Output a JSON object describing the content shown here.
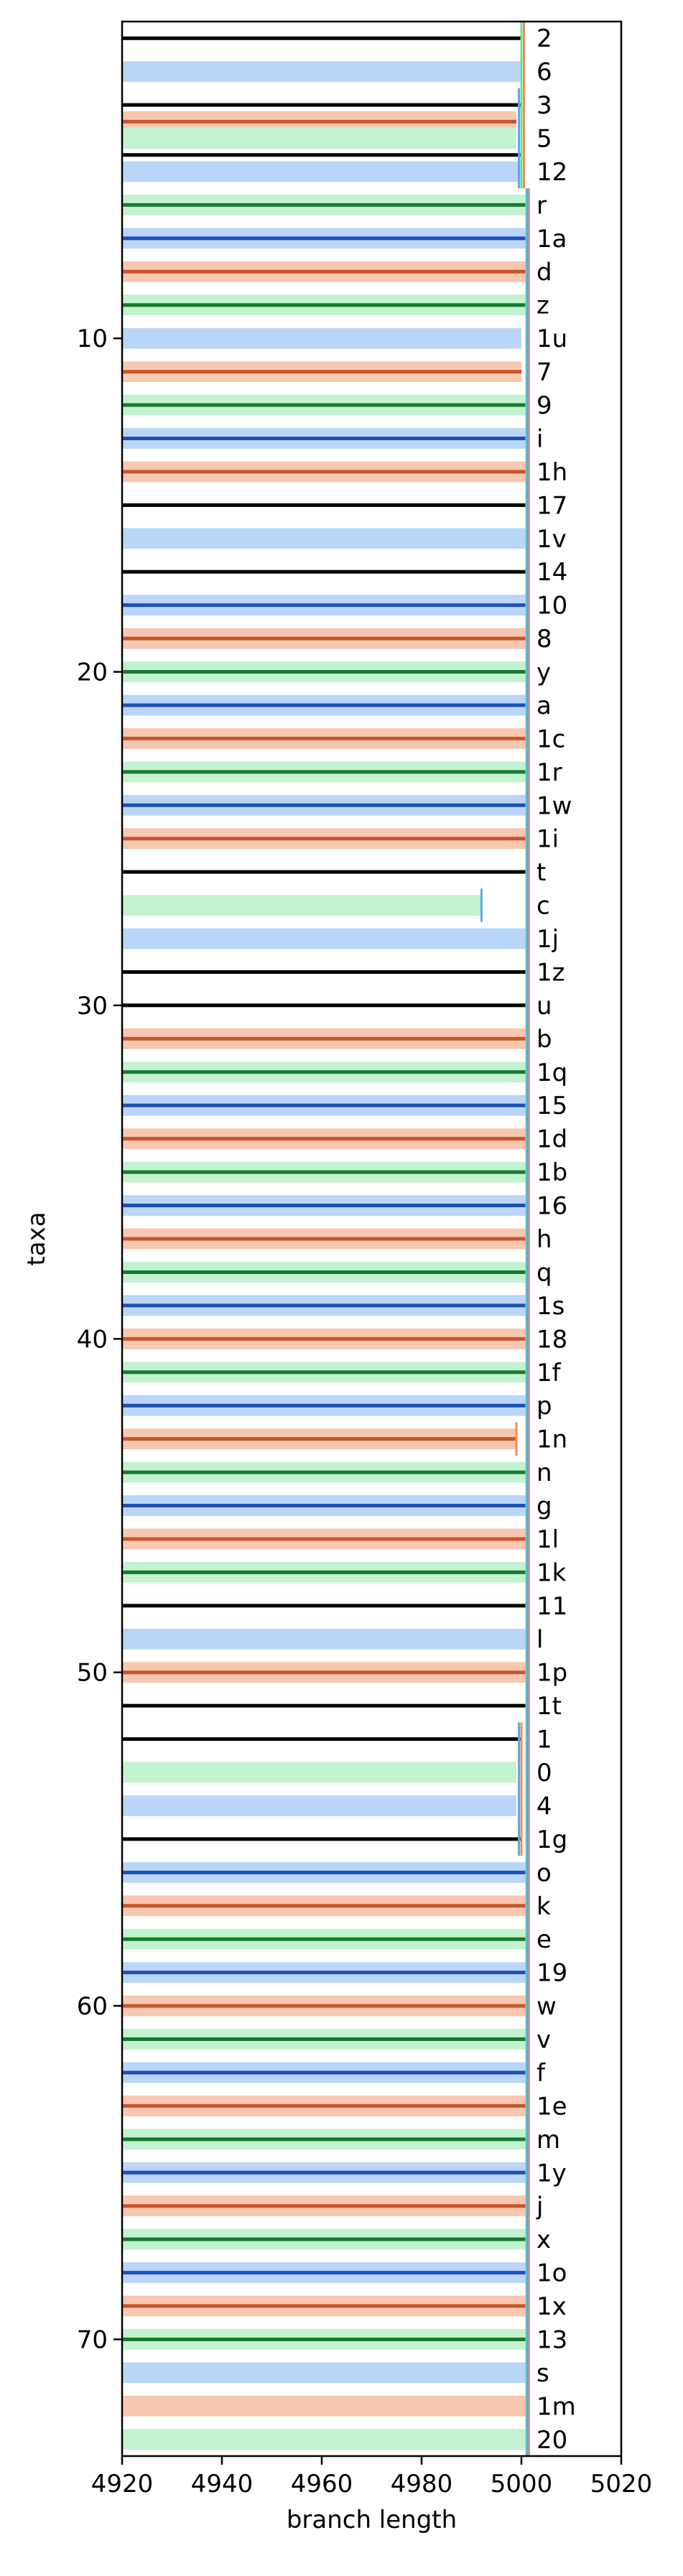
{
  "chart_data": {
    "type": "tree-bars",
    "xlabel": "branch length",
    "ylabel": "taxa",
    "xlim": [
      4920,
      5020
    ],
    "ylim": [
      0.5,
      73.5
    ],
    "x_ticks": [
      4920,
      4940,
      4960,
      4980,
      5000,
      5020
    ],
    "y_ticks": [
      10,
      20,
      30,
      40,
      50,
      60,
      70
    ],
    "grid": false,
    "colors": {
      "black": "#000000",
      "blue_dark": "#1f4fb5",
      "blue_light": "#b9d6f8",
      "green_dark": "#167a2e",
      "green_light": "#c2f2cf",
      "red_dark": "#c8552b",
      "red_light": "#f8c7af",
      "vline_blue": "#5aa7ee",
      "vline_green": "#6fe096",
      "vline_orange": "#f08c52"
    },
    "taxa": [
      {
        "y": 1,
        "label": "2",
        "style": "black",
        "x_end": 5000
      },
      {
        "y": 2,
        "label": "6",
        "style": "blue_light",
        "x_end": 5000
      },
      {
        "y": 3,
        "label": "3",
        "style": "black",
        "x_end": 5000
      },
      {
        "y": 3.5,
        "label": "",
        "style": "red_dark",
        "x_end": 4999
      },
      {
        "y": 4,
        "label": "5",
        "style": "green_light",
        "x_end": 4999
      },
      {
        "y": 4.5,
        "label": "",
        "style": "black",
        "x_end": 5000
      },
      {
        "y": 5,
        "label": "12",
        "style": "blue_light",
        "x_end": 5000
      },
      {
        "y": 6,
        "label": "r",
        "style": "green_dark",
        "x_end": 5001
      },
      {
        "y": 7,
        "label": "1a",
        "style": "blue_dark",
        "x_end": 5001
      },
      {
        "y": 8,
        "label": "d",
        "style": "red_dark",
        "x_end": 5001
      },
      {
        "y": 9,
        "label": "z",
        "style": "green_dark",
        "x_end": 5001
      },
      {
        "y": 10,
        "label": "1u",
        "style": "blue_light",
        "x_end": 5000
      },
      {
        "y": 11,
        "label": "7",
        "style": "red_dark",
        "x_end": 5000
      },
      {
        "y": 12,
        "label": "9",
        "style": "green_dark",
        "x_end": 5001
      },
      {
        "y": 13,
        "label": "i",
        "style": "blue_dark",
        "x_end": 5001
      },
      {
        "y": 14,
        "label": "1h",
        "style": "red_dark",
        "x_end": 5001
      },
      {
        "y": 15,
        "label": "17",
        "style": "black",
        "x_end": 5001
      },
      {
        "y": 16,
        "label": "1v",
        "style": "blue_light",
        "x_end": 5001
      },
      {
        "y": 17,
        "label": "14",
        "style": "black",
        "x_end": 5001
      },
      {
        "y": 18,
        "label": "10",
        "style": "blue_dark",
        "x_end": 5001
      },
      {
        "y": 19,
        "label": "8",
        "style": "red_dark",
        "x_end": 5001
      },
      {
        "y": 20,
        "label": "y",
        "style": "green_dark",
        "x_end": 5001
      },
      {
        "y": 21,
        "label": "a",
        "style": "blue_dark",
        "x_end": 5001
      },
      {
        "y": 22,
        "label": "1c",
        "style": "red_dark",
        "x_end": 5001
      },
      {
        "y": 23,
        "label": "1r",
        "style": "green_dark",
        "x_end": 5001
      },
      {
        "y": 24,
        "label": "1w",
        "style": "blue_dark",
        "x_end": 5001
      },
      {
        "y": 25,
        "label": "1i",
        "style": "red_dark",
        "x_end": 5001
      },
      {
        "y": 26,
        "label": "t",
        "style": "black",
        "x_end": 5001
      },
      {
        "y": 27,
        "label": "c",
        "style": "green_light",
        "x_end": 4992
      },
      {
        "y": 28,
        "label": "1j",
        "style": "blue_light",
        "x_end": 5001
      },
      {
        "y": 29,
        "label": "1z",
        "style": "black",
        "x_end": 5001
      },
      {
        "y": 30,
        "label": "u",
        "style": "black",
        "x_end": 5001
      },
      {
        "y": 31,
        "label": "b",
        "style": "red_dark",
        "x_end": 5001
      },
      {
        "y": 32,
        "label": "1q",
        "style": "green_dark",
        "x_end": 5001
      },
      {
        "y": 33,
        "label": "15",
        "style": "blue_dark",
        "x_end": 5001
      },
      {
        "y": 34,
        "label": "1d",
        "style": "red_dark",
        "x_end": 5001
      },
      {
        "y": 35,
        "label": "1b",
        "style": "green_dark",
        "x_end": 5001
      },
      {
        "y": 36,
        "label": "16",
        "style": "blue_dark",
        "x_end": 5001
      },
      {
        "y": 37,
        "label": "h",
        "style": "red_dark",
        "x_end": 5001
      },
      {
        "y": 38,
        "label": "q",
        "style": "green_dark",
        "x_end": 5001
      },
      {
        "y": 39,
        "label": "1s",
        "style": "blue_dark",
        "x_end": 5001
      },
      {
        "y": 40,
        "label": "18",
        "style": "red_dark",
        "x_end": 5001
      },
      {
        "y": 41,
        "label": "1f",
        "style": "green_dark",
        "x_end": 5001
      },
      {
        "y": 42,
        "label": "p",
        "style": "blue_dark",
        "x_end": 5001
      },
      {
        "y": 43,
        "label": "1n",
        "style": "red_dark",
        "x_end": 4999
      },
      {
        "y": 44,
        "label": "n",
        "style": "green_dark",
        "x_end": 5001
      },
      {
        "y": 45,
        "label": "g",
        "style": "blue_dark",
        "x_end": 5001
      },
      {
        "y": 46,
        "label": "1l",
        "style": "red_dark",
        "x_end": 5001
      },
      {
        "y": 47,
        "label": "1k",
        "style": "green_dark",
        "x_end": 5001
      },
      {
        "y": 48,
        "label": "11",
        "style": "black",
        "x_end": 5001
      },
      {
        "y": 49,
        "label": "l",
        "style": "blue_light",
        "x_end": 5001
      },
      {
        "y": 50,
        "label": "1p",
        "style": "red_dark",
        "x_end": 5001
      },
      {
        "y": 51,
        "label": "1t",
        "style": "black",
        "x_end": 5001
      },
      {
        "y": 52,
        "label": "1",
        "style": "black",
        "x_end": 5000
      },
      {
        "y": 53,
        "label": "0",
        "style": "green_light",
        "x_end": 4999
      },
      {
        "y": 54,
        "label": "4",
        "style": "blue_light",
        "x_end": 4999
      },
      {
        "y": 55,
        "label": "1g",
        "style": "black",
        "x_end": 5000
      },
      {
        "y": 56,
        "label": "o",
        "style": "blue_dark",
        "x_end": 5001
      },
      {
        "y": 57,
        "label": "k",
        "style": "red_dark",
        "x_end": 5001
      },
      {
        "y": 58,
        "label": "e",
        "style": "green_dark",
        "x_end": 5001
      },
      {
        "y": 59,
        "label": "19",
        "style": "blue_dark",
        "x_end": 5001
      },
      {
        "y": 60,
        "label": "w",
        "style": "red_dark",
        "x_end": 5001
      },
      {
        "y": 61,
        "label": "v",
        "style": "green_dark",
        "x_end": 5001
      },
      {
        "y": 62,
        "label": "f",
        "style": "blue_dark",
        "x_end": 5001
      },
      {
        "y": 63,
        "label": "1e",
        "style": "red_dark",
        "x_end": 5001
      },
      {
        "y": 64,
        "label": "m",
        "style": "green_dark",
        "x_end": 5001
      },
      {
        "y": 65,
        "label": "1y",
        "style": "blue_dark",
        "x_end": 5001
      },
      {
        "y": 66,
        "label": "j",
        "style": "red_dark",
        "x_end": 5001
      },
      {
        "y": 67,
        "label": "x",
        "style": "green_dark",
        "x_end": 5001
      },
      {
        "y": 68,
        "label": "1o",
        "style": "blue_dark",
        "x_end": 5001
      },
      {
        "y": 69,
        "label": "1x",
        "style": "red_dark",
        "x_end": 5001
      },
      {
        "y": 70,
        "label": "13",
        "style": "green_dark",
        "x_end": 5001
      },
      {
        "y": 71,
        "label": "s",
        "style": "blue_light",
        "x_end": 5001
      },
      {
        "y": 72,
        "label": "1m",
        "style": "red_light",
        "x_end": 5001
      },
      {
        "y": 73,
        "label": "20",
        "style": "green_light",
        "x_end": 5001
      }
    ],
    "vertical_lines": [
      {
        "x": 5000,
        "y_range": [
          0.5,
          5.5
        ],
        "color": "vline_green"
      },
      {
        "x": 5000.5,
        "y_range": [
          0.5,
          5.5
        ],
        "color": "vline_orange"
      },
      {
        "x": 4999.5,
        "y_range": [
          2.5,
          5.5
        ],
        "color": "vline_blue"
      },
      {
        "x": 5001,
        "y_range": [
          5.5,
          73.5
        ],
        "color": "vline_green"
      },
      {
        "x": 5001.5,
        "y_range": [
          5.5,
          73.5
        ],
        "color": "vline_orange"
      },
      {
        "x": 5001.2,
        "y_range": [
          5.5,
          73.5
        ],
        "color": "vline_blue"
      },
      {
        "x": 4992,
        "y_range": [
          26.5,
          27.5
        ],
        "color": "vline_blue"
      },
      {
        "x": 4999,
        "y_range": [
          42.5,
          43.5
        ],
        "color": "vline_orange"
      },
      {
        "x": 4999.5,
        "y_range": [
          51.5,
          55.5
        ],
        "color": "vline_blue"
      },
      {
        "x": 5000,
        "y_range": [
          51.5,
          55.5
        ],
        "color": "vline_orange"
      }
    ]
  }
}
